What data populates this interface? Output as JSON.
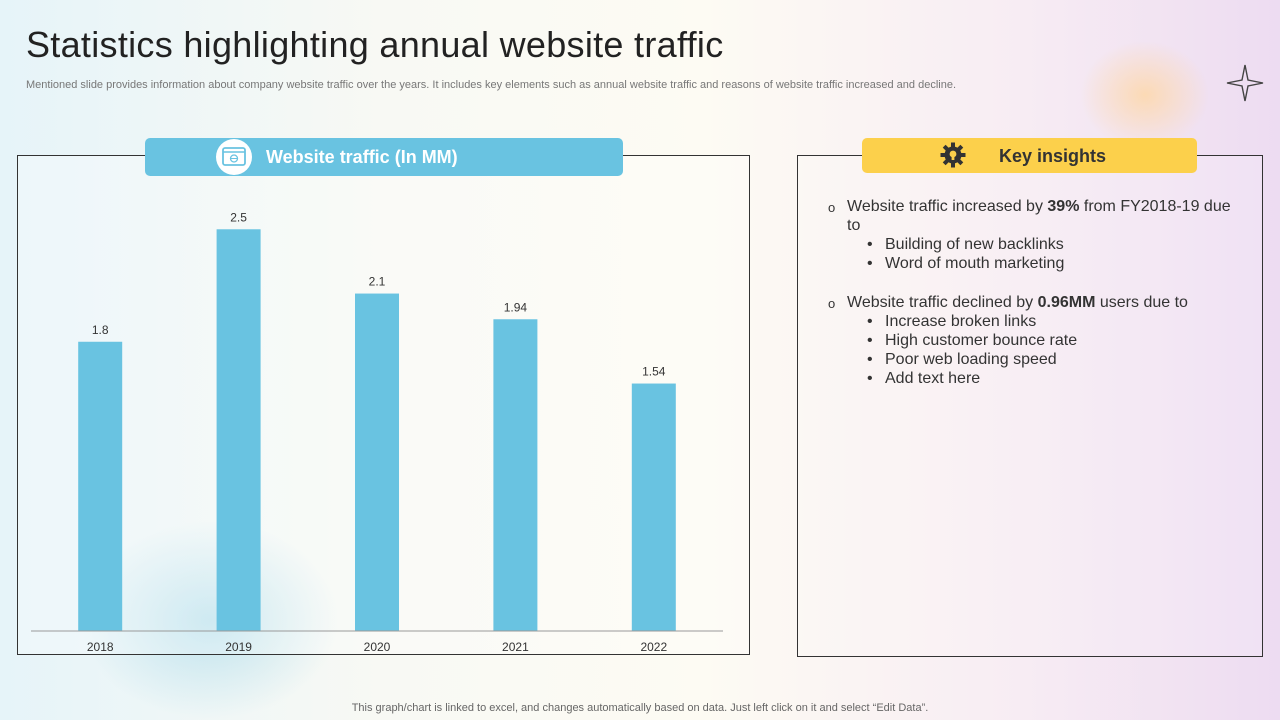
{
  "slide": {
    "title": "Statistics highlighting annual website traffic",
    "subtitle": "Mentioned slide provides information about company website traffic over the years. It includes key elements such as annual website traffic and reasons of website traffic increased and decline.",
    "footer": "This graph/chart is linked to excel,  and changes automatically based on data. Just left click on it and select “Edit Data”."
  },
  "chart_data": {
    "type": "bar",
    "title": "Website traffic (In MM)",
    "categories": [
      "2018",
      "2019",
      "2020",
      "2021",
      "2022"
    ],
    "values": [
      1.8,
      2.5,
      2.1,
      1.94,
      1.54
    ],
    "value_labels": [
      "1.8",
      "2.5",
      "2.1",
      "1.94",
      "1.54"
    ],
    "ylim": [
      0,
      2.9
    ],
    "grid": false,
    "bar_color": "#69c3e1"
  },
  "insights": {
    "title": "Key insights",
    "points": [
      {
        "before": "Website traffic increased by ",
        "bold": "39%",
        "after": " from FY2018-19 due to",
        "subs": [
          "Building of new backlinks",
          "Word of mouth marketing"
        ]
      },
      {
        "before": "Website traffic declined by ",
        "bold": "0.96MM",
        "after": " users due to",
        "subs": [
          "Increase  broken links",
          "High customer bounce rate",
          "Poor web loading speed",
          "Add text here"
        ]
      }
    ]
  },
  "colors": {
    "accent_blue": "#69c3e1",
    "accent_yellow": "#fcd04b"
  }
}
